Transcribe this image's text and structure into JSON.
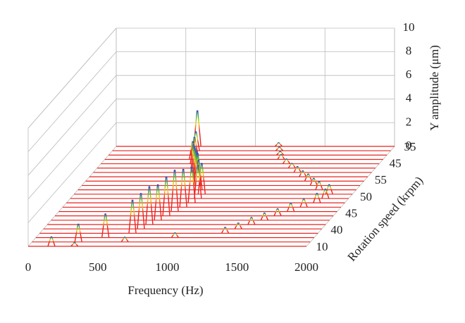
{
  "chart_data": {
    "type": "waterfall",
    "xlabel": "Frequency (Hz)",
    "ylabel": "Y amplitude (μm)",
    "zlabel": "Rotation speed (krpm)",
    "xlim": [
      0,
      2000
    ],
    "xticks": [
      0,
      500,
      1000,
      1500,
      2000
    ],
    "ylim": [
      0,
      10
    ],
    "yticks": [
      0,
      2,
      4,
      6,
      8,
      10
    ],
    "zcategories": [
      "10",
      "40",
      "45",
      "50",
      "55",
      "45",
      "35"
    ],
    "color": "#e8231f",
    "grid": true,
    "series": [
      {
        "x": [
          167,
          333
        ],
        "values": [
          0.8,
          0.3
        ]
      },
      {
        "x": [
          333,
          667
        ],
        "values": [
          1.5,
          0.4
        ]
      },
      {
        "x": [
          500,
          1000
        ],
        "values": [
          2.0,
          0.4
        ]
      },
      {
        "x": [
          667,
          1333
        ],
        "values": [
          2.8,
          0.5
        ]
      },
      {
        "x": [
          700,
          1400
        ],
        "values": [
          3.0,
          0.5
        ]
      },
      {
        "x": [
          733,
          1467
        ],
        "values": [
          3.2,
          0.6
        ]
      },
      {
        "x": [
          767,
          1533
        ],
        "values": [
          3.0,
          0.6
        ]
      },
      {
        "x": [
          800,
          1600
        ],
        "values": [
          3.3,
          0.6
        ]
      },
      {
        "x": [
          833,
          1667
        ],
        "values": [
          3.5,
          0.7
        ]
      },
      {
        "x": [
          867,
          1733
        ],
        "values": [
          3.2,
          0.7
        ]
      },
      {
        "x": [
          900,
          1800
        ],
        "values": [
          3.0,
          0.8
        ]
      },
      {
        "x": [
          917,
          1833
        ],
        "values": [
          2.8,
          0.8
        ]
      },
      {
        "x": [
          917,
          1833
        ],
        "values": [
          2.6,
          0.8
        ]
      },
      {
        "x": [
          867,
          1733
        ],
        "values": [
          2.5,
          0.7
        ]
      },
      {
        "x": [
          833,
          1667
        ],
        "values": [
          2.7,
          0.6
        ]
      },
      {
        "x": [
          800,
          1600
        ],
        "values": [
          2.4,
          0.6
        ]
      },
      {
        "x": [
          767,
          1533
        ],
        "values": [
          2.2,
          0.5
        ]
      },
      {
        "x": [
          733,
          1467
        ],
        "values": [
          2.0,
          0.5
        ]
      },
      {
        "x": [
          700,
          1400
        ],
        "values": [
          1.8,
          0.4
        ]
      },
      {
        "x": [
          667,
          1333
        ],
        "values": [
          1.6,
          0.4
        ]
      },
      {
        "x": [
          633,
          1267
        ],
        "values": [
          1.5,
          0.4
        ]
      },
      {
        "x": [
          617,
          1233
        ],
        "values": [
          1.5,
          0.3
        ]
      },
      {
        "x": [
          600,
          1200
        ],
        "values": [
          1.6,
          0.3
        ]
      },
      {
        "x": [
          583,
          1167
        ],
        "values": [
          3.0,
          0.3
        ]
      }
    ]
  }
}
